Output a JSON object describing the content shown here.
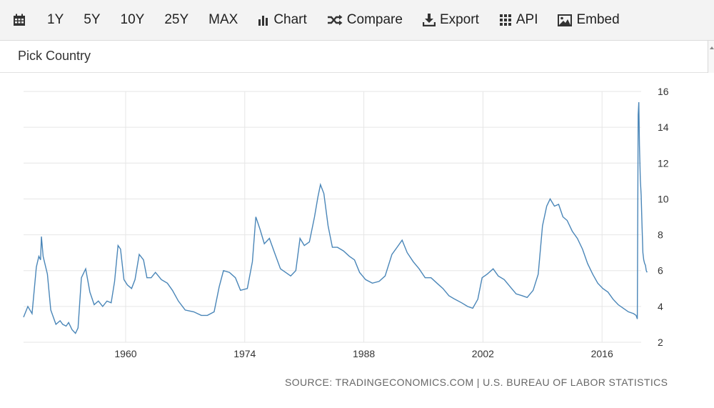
{
  "toolbar": {
    "calendar_icon": "calendar-icon",
    "ranges": [
      "1Y",
      "5Y",
      "10Y",
      "25Y",
      "MAX"
    ],
    "chart_label": "Chart",
    "compare_label": "Compare",
    "export_label": "Export",
    "api_label": "API",
    "embed_label": "Embed"
  },
  "picker": {
    "label": "Pick Country"
  },
  "source": "SOURCE: TRADINGECONOMICS.COM | U.S. BUREAU OF LABOR STATISTICS",
  "colors": {
    "line": "#4a86b8",
    "grid": "#e6e6e6",
    "toolbar_bg": "#f3f3f3"
  },
  "chart_data": {
    "type": "line",
    "title": "",
    "xlabel": "",
    "ylabel": "",
    "y_axis_position": "right",
    "grid": true,
    "xlim": [
      1948,
      2020.6
    ],
    "ylim": [
      2,
      16
    ],
    "x_ticks": [
      1960,
      1974,
      1988,
      2002,
      2016
    ],
    "y_ticks": [
      2,
      4,
      6,
      8,
      10,
      12,
      14,
      16
    ],
    "series": [
      {
        "name": "",
        "points": [
          [
            1948.0,
            3.4
          ],
          [
            1948.5,
            4.0
          ],
          [
            1949.0,
            3.6
          ],
          [
            1949.5,
            6.2
          ],
          [
            1949.8,
            6.8
          ],
          [
            1950.0,
            6.6
          ],
          [
            1950.1,
            7.9
          ],
          [
            1950.3,
            6.8
          ],
          [
            1950.8,
            5.8
          ],
          [
            1951.2,
            3.8
          ],
          [
            1951.8,
            3.0
          ],
          [
            1952.3,
            3.2
          ],
          [
            1952.6,
            3.0
          ],
          [
            1953.0,
            2.9
          ],
          [
            1953.3,
            3.1
          ],
          [
            1953.7,
            2.7
          ],
          [
            1954.1,
            2.5
          ],
          [
            1954.4,
            2.8
          ],
          [
            1954.8,
            5.6
          ],
          [
            1955.3,
            6.1
          ],
          [
            1955.8,
            4.8
          ],
          [
            1956.3,
            4.1
          ],
          [
            1956.8,
            4.3
          ],
          [
            1957.3,
            4.0
          ],
          [
            1957.8,
            4.3
          ],
          [
            1958.3,
            4.2
          ],
          [
            1958.7,
            5.4
          ],
          [
            1959.1,
            7.4
          ],
          [
            1959.4,
            7.2
          ],
          [
            1959.8,
            5.5
          ],
          [
            1960.2,
            5.2
          ],
          [
            1960.7,
            5.0
          ],
          [
            1961.1,
            5.5
          ],
          [
            1961.6,
            6.9
          ],
          [
            1962.1,
            6.6
          ],
          [
            1962.5,
            5.6
          ],
          [
            1963.0,
            5.6
          ],
          [
            1963.5,
            5.9
          ],
          [
            1964.2,
            5.5
          ],
          [
            1964.9,
            5.3
          ],
          [
            1965.5,
            4.9
          ],
          [
            1966.2,
            4.3
          ],
          [
            1967.0,
            3.8
          ],
          [
            1968.0,
            3.7
          ],
          [
            1968.9,
            3.5
          ],
          [
            1969.6,
            3.5
          ],
          [
            1970.4,
            3.7
          ],
          [
            1971.0,
            5.1
          ],
          [
            1971.5,
            6.0
          ],
          [
            1972.2,
            5.9
          ],
          [
            1972.9,
            5.6
          ],
          [
            1973.5,
            4.9
          ],
          [
            1974.3,
            5.0
          ],
          [
            1974.9,
            6.5
          ],
          [
            1975.3,
            9.0
          ],
          [
            1975.8,
            8.3
          ],
          [
            1976.3,
            7.5
          ],
          [
            1976.9,
            7.8
          ],
          [
            1977.5,
            7.0
          ],
          [
            1978.2,
            6.1
          ],
          [
            1978.8,
            5.9
          ],
          [
            1979.4,
            5.7
          ],
          [
            1980.0,
            6.0
          ],
          [
            1980.5,
            7.8
          ],
          [
            1981.0,
            7.4
          ],
          [
            1981.6,
            7.6
          ],
          [
            1982.2,
            9.0
          ],
          [
            1982.6,
            10.1
          ],
          [
            1982.9,
            10.8
          ],
          [
            1983.3,
            10.3
          ],
          [
            1983.8,
            8.5
          ],
          [
            1984.3,
            7.3
          ],
          [
            1984.9,
            7.3
          ],
          [
            1985.6,
            7.1
          ],
          [
            1986.3,
            6.8
          ],
          [
            1986.9,
            6.6
          ],
          [
            1987.5,
            5.9
          ],
          [
            1988.2,
            5.5
          ],
          [
            1989.0,
            5.3
          ],
          [
            1989.8,
            5.4
          ],
          [
            1990.5,
            5.7
          ],
          [
            1991.3,
            6.9
          ],
          [
            1991.9,
            7.3
          ],
          [
            1992.5,
            7.7
          ],
          [
            1993.1,
            7.0
          ],
          [
            1993.8,
            6.5
          ],
          [
            1994.5,
            6.1
          ],
          [
            1995.2,
            5.6
          ],
          [
            1995.9,
            5.6
          ],
          [
            1996.6,
            5.3
          ],
          [
            1997.3,
            5.0
          ],
          [
            1998.0,
            4.6
          ],
          [
            1998.7,
            4.4
          ],
          [
            1999.5,
            4.2
          ],
          [
            2000.2,
            4.0
          ],
          [
            2000.8,
            3.9
          ],
          [
            2001.4,
            4.4
          ],
          [
            2001.9,
            5.6
          ],
          [
            2002.5,
            5.8
          ],
          [
            2003.2,
            6.1
          ],
          [
            2003.8,
            5.7
          ],
          [
            2004.5,
            5.5
          ],
          [
            2005.2,
            5.1
          ],
          [
            2005.9,
            4.7
          ],
          [
            2006.6,
            4.6
          ],
          [
            2007.2,
            4.5
          ],
          [
            2007.9,
            4.9
          ],
          [
            2008.5,
            5.8
          ],
          [
            2009.0,
            8.5
          ],
          [
            2009.5,
            9.6
          ],
          [
            2009.9,
            10.0
          ],
          [
            2010.4,
            9.6
          ],
          [
            2010.9,
            9.7
          ],
          [
            2011.4,
            9.0
          ],
          [
            2011.9,
            8.8
          ],
          [
            2012.5,
            8.2
          ],
          [
            2013.1,
            7.8
          ],
          [
            2013.7,
            7.2
          ],
          [
            2014.3,
            6.4
          ],
          [
            2014.9,
            5.8
          ],
          [
            2015.5,
            5.3
          ],
          [
            2016.1,
            5.0
          ],
          [
            2016.7,
            4.8
          ],
          [
            2017.3,
            4.4
          ],
          [
            2017.9,
            4.1
          ],
          [
            2018.5,
            3.9
          ],
          [
            2019.1,
            3.7
          ],
          [
            2019.7,
            3.6
          ],
          [
            2020.0,
            3.5
          ],
          [
            2020.15,
            3.3
          ],
          [
            2020.25,
            14.7
          ],
          [
            2020.32,
            15.4
          ],
          [
            2020.4,
            13.0
          ],
          [
            2020.5,
            11.1
          ],
          [
            2020.6,
            10.2
          ],
          [
            2020.7,
            8.5
          ],
          [
            2020.8,
            7.0
          ],
          [
            2020.9,
            6.6
          ],
          [
            2021.0,
            6.4
          ],
          [
            2021.1,
            6.3
          ],
          [
            2021.2,
            6.0
          ],
          [
            2021.3,
            5.9
          ]
        ]
      }
    ]
  }
}
